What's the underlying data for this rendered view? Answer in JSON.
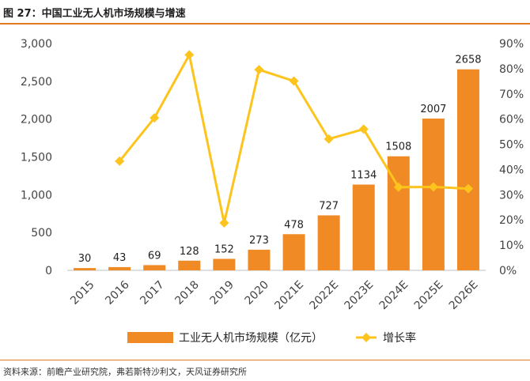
{
  "figure": {
    "title": "图 27：中国工业无人机市场规模与增速",
    "source": "资料来源：前瞻产业研究院，弗若斯特沙利文，天风证券研究所"
  },
  "colors": {
    "bar": "#f08a24",
    "line": "#fcc41d",
    "accent_rule": "#e07b21"
  },
  "chart_data": {
    "type": "bar+line",
    "title": "中国工业无人机市场规模与增速",
    "categories": [
      "2015",
      "2016",
      "2017",
      "2018",
      "2019",
      "2020",
      "2021E",
      "2022E",
      "2023E",
      "2024E",
      "2025E",
      "2026E"
    ],
    "series": [
      {
        "name": "工业无人机市场规模（亿元）",
        "type": "bar",
        "axis": "left",
        "values": [
          30,
          43,
          69,
          128,
          152,
          273,
          478,
          727,
          1134,
          1508,
          2007,
          2658
        ]
      },
      {
        "name": "增长率",
        "type": "line",
        "axis": "right",
        "unit": "%",
        "values": [
          null,
          43.3,
          60.5,
          85.5,
          18.8,
          79.6,
          75.1,
          52.1,
          56.0,
          33.0,
          33.1,
          32.4
        ]
      }
    ],
    "left_axis": {
      "min": 0,
      "max": 3000,
      "ticks": [
        "0",
        "500",
        "1,000",
        "1,500",
        "2,000",
        "2,500",
        "3,000"
      ],
      "tick_values": [
        0,
        500,
        1000,
        1500,
        2000,
        2500,
        3000
      ]
    },
    "right_axis": {
      "min": 0,
      "max": 90,
      "ticks": [
        "0%",
        "10%",
        "20%",
        "30%",
        "40%",
        "50%",
        "60%",
        "70%",
        "80%",
        "90%"
      ],
      "tick_values": [
        0,
        10,
        20,
        30,
        40,
        50,
        60,
        70,
        80,
        90
      ]
    },
    "legend": {
      "bar_label": "工业无人机市场规模（亿元）",
      "line_label": "增长率",
      "placement": "bottom"
    },
    "grid": false
  }
}
